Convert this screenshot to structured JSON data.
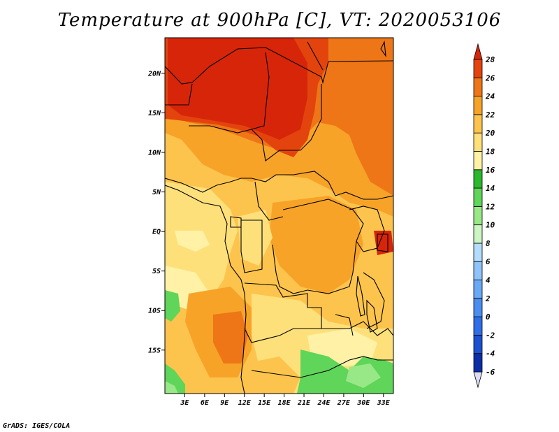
{
  "title": "Temperature at 900hPa [C], VT: 2020053106",
  "credit": "GrADS: IGES/COLA",
  "map": {
    "lon_range": [
      0,
      34.5
    ],
    "lat_range": [
      -20.5,
      24.5
    ],
    "lat_ticks": [
      {
        "value": 20,
        "label": "20N"
      },
      {
        "value": 15,
        "label": "15N"
      },
      {
        "value": 10,
        "label": "10N"
      },
      {
        "value": 5,
        "label": "5N"
      },
      {
        "value": 0,
        "label": "EQ"
      },
      {
        "value": -5,
        "label": "5S"
      },
      {
        "value": -10,
        "label": "10S"
      },
      {
        "value": -15,
        "label": "15S"
      }
    ],
    "lon_ticks": [
      {
        "value": 3,
        "label": "3E"
      },
      {
        "value": 6,
        "label": "6E"
      },
      {
        "value": 9,
        "label": "9E"
      },
      {
        "value": 12,
        "label": "12E"
      },
      {
        "value": 15,
        "label": "15E"
      },
      {
        "value": 18,
        "label": "18E"
      },
      {
        "value": 21,
        "label": "21E"
      },
      {
        "value": 24,
        "label": "24E"
      },
      {
        "value": 27,
        "label": "27E"
      },
      {
        "value": 30,
        "label": "30E"
      },
      {
        "value": 33,
        "label": "33E"
      }
    ]
  },
  "colorbar": {
    "levels": [
      "-6",
      "-4",
      "-2",
      "0",
      "2",
      "4",
      "6",
      "8",
      "10",
      "12",
      "14",
      "16",
      "18",
      "20",
      "22",
      "24",
      "26",
      "28"
    ],
    "colors": [
      "#000d6a",
      "#0a2ea6",
      "#1b50cf",
      "#2e6ee6",
      "#4b8ef0",
      "#6aa9f5",
      "#8fc4fb",
      "#b4dcfc",
      "#cdf5c4",
      "#99e887",
      "#5fd559",
      "#2bb82c",
      "#fff2a6",
      "#fee07b",
      "#fdc44d",
      "#f7a328",
      "#ee7617",
      "#e3440e",
      "#d7250a"
    ],
    "low_cap": "#dddcf4",
    "high_cap": "#d7250a"
  }
}
